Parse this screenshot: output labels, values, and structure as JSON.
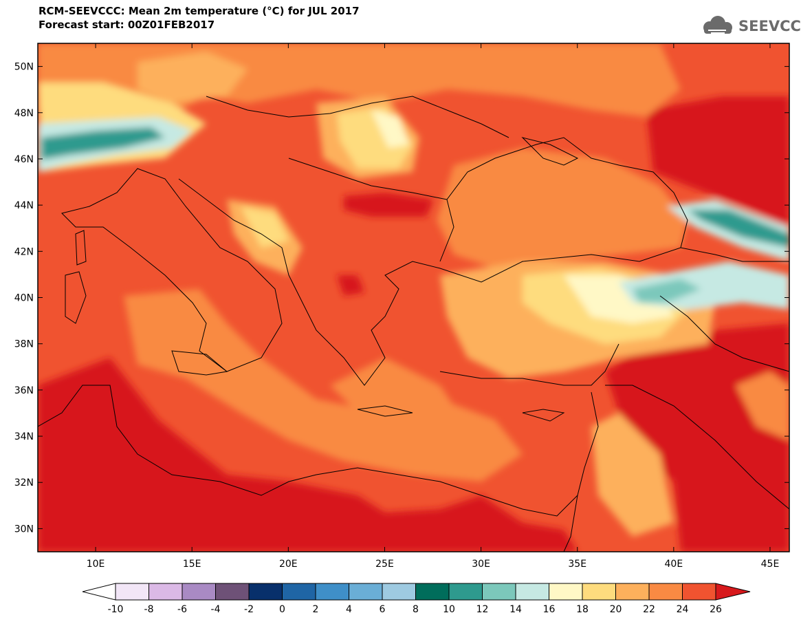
{
  "header": {
    "title_line1": "RCM-SEEVCCC: Mean 2m temperature (°C) for JUL 2017",
    "title_line2": "Forecast start: 00Z01FEB2017"
  },
  "logo": {
    "text": "SEEVCCC",
    "icon": "cloud-icon",
    "color": "#6b6b6b"
  },
  "map": {
    "lon_range": [
      7,
      46
    ],
    "lat_range": [
      29,
      51
    ],
    "lon_ticks": [
      {
        "value": 10,
        "label": "10E"
      },
      {
        "value": 15,
        "label": "15E"
      },
      {
        "value": 20,
        "label": "20E"
      },
      {
        "value": 25,
        "label": "25E"
      },
      {
        "value": 30,
        "label": "30E"
      },
      {
        "value": 35,
        "label": "35E"
      },
      {
        "value": 40,
        "label": "40E"
      },
      {
        "value": 45,
        "label": "45E"
      }
    ],
    "lat_ticks": [
      {
        "value": 30,
        "label": "30N"
      },
      {
        "value": 32,
        "label": "32N"
      },
      {
        "value": 34,
        "label": "34N"
      },
      {
        "value": 36,
        "label": "36N"
      },
      {
        "value": 38,
        "label": "38N"
      },
      {
        "value": 40,
        "label": "40N"
      },
      {
        "value": 42,
        "label": "42N"
      },
      {
        "value": 44,
        "label": "44N"
      },
      {
        "value": 46,
        "label": "46N"
      },
      {
        "value": 48,
        "label": "48N"
      },
      {
        "value": 50,
        "label": "50N"
      }
    ]
  },
  "colorbar": {
    "labels": [
      "-10",
      "-8",
      "-6",
      "-4",
      "-2",
      "0",
      "2",
      "4",
      "6",
      "8",
      "10",
      "12",
      "14",
      "16",
      "18",
      "20",
      "22",
      "24",
      "26"
    ],
    "low_color": "#ffffff",
    "high_color": "#d7191c",
    "colors": [
      "#f2e6f7",
      "#dbb9e6",
      "#a98ac4",
      "#6e5177",
      "#08306b",
      "#1f65a5",
      "#3f8fc8",
      "#6aaed6",
      "#9ecae1",
      "#006d5b",
      "#2e9a8e",
      "#7cc8bb",
      "#c6e9e3",
      "#fff8c6",
      "#fedc7e",
      "#fdb05c",
      "#f98a43",
      "#f05330"
    ]
  },
  "palette": {
    "red": "#d7191c",
    "orange_red": "#f05330",
    "orange": "#f98a43",
    "light_orange": "#fdb05c",
    "yellow": "#fedc7e",
    "pale_yellow": "#fff8c6",
    "pale_cyan": "#c6e9e3",
    "teal_light": "#7cc8bb",
    "teal": "#2e9a8e",
    "teal_dark": "#006d5b"
  }
}
